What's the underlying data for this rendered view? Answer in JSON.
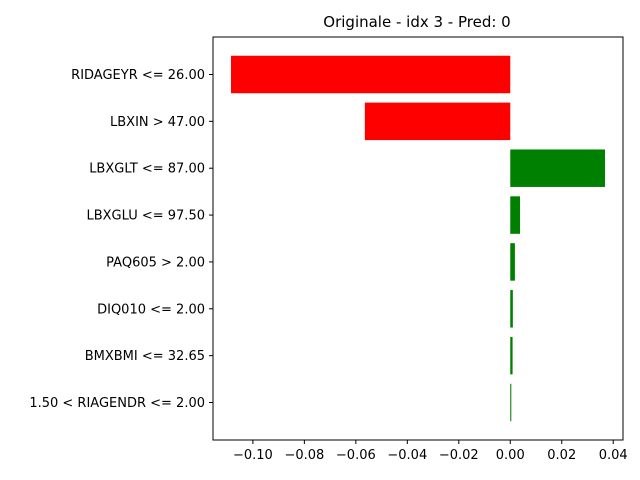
{
  "chart_data": {
    "type": "bar",
    "orientation": "horizontal",
    "title": "Originale - idx 3 - Pred: 0",
    "xlabel": "",
    "ylabel": "",
    "categories": [
      "RIDAGEYR <= 26.00",
      "LBXIN > 47.00",
      "LBXGLT <= 87.00",
      "LBXGLU <= 97.50",
      "PAQ605 > 2.00",
      "DIQ010 <= 2.00",
      "BMXBMI <= 32.65",
      "1.50 < RIAGENDR <= 2.00"
    ],
    "values": [
      -0.1085,
      -0.0565,
      0.0368,
      0.0038,
      0.0018,
      0.001,
      0.0009,
      0.0004
    ],
    "colors": [
      "#ff0000",
      "#ff0000",
      "#008000",
      "#008000",
      "#008000",
      "#008000",
      "#008000",
      "#008000"
    ],
    "positive_color": "#008000",
    "negative_color": "#ff0000",
    "xlim": [
      -0.1155,
      0.0438
    ],
    "xticks": [
      -0.1,
      -0.08,
      -0.06,
      -0.04,
      -0.02,
      0.0,
      0.02,
      0.04
    ],
    "xtick_labels": [
      "−0.10",
      "−0.08",
      "−0.06",
      "−0.04",
      "−0.02",
      "0.00",
      "0.02",
      "0.04"
    ],
    "grid": false,
    "legend": "none"
  }
}
